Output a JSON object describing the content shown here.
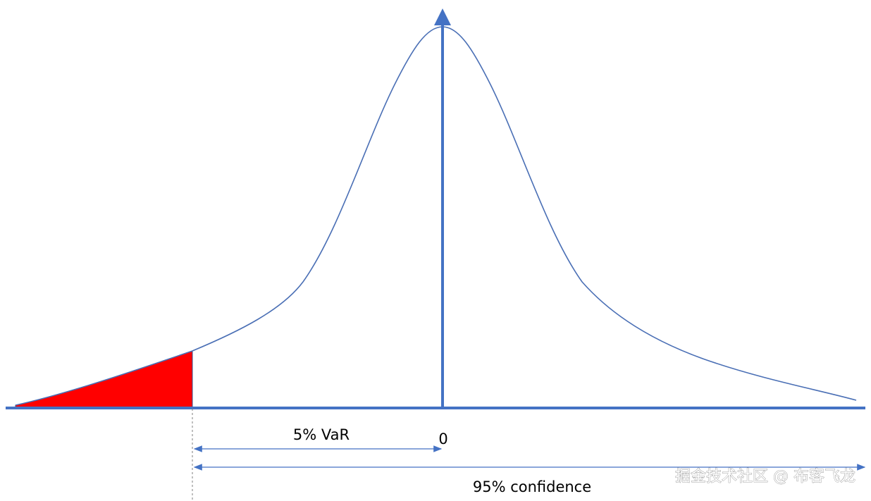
{
  "labels": {
    "var": "5% VaR",
    "zero": "0",
    "confidence": "95% confidence"
  },
  "watermark": "掘金技术社区 @ 布客飞龙"
}
